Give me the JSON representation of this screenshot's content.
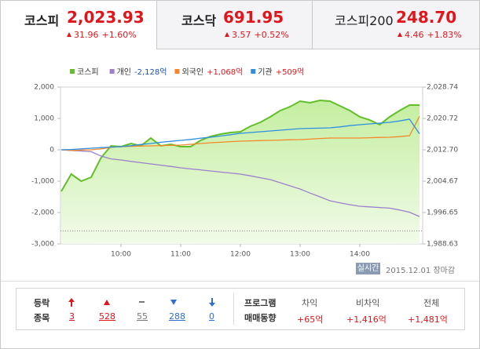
{
  "tabs": [
    {
      "name": "코스피",
      "price": "2,023.93",
      "change": "31.96",
      "rate": "+1.60%"
    },
    {
      "name": "코스닥",
      "price": "691.95",
      "change": "3.57",
      "rate": "+0.52%"
    },
    {
      "name": "코스피200",
      "price": "248.70",
      "change": "4.46",
      "rate": "+1.83%"
    }
  ],
  "chart_data": {
    "type": "line",
    "x": [
      "09:00",
      "09:10",
      "09:20",
      "09:30",
      "09:40",
      "09:50",
      "10:00",
      "10:10",
      "10:20",
      "10:30",
      "10:40",
      "10:50",
      "11:00",
      "11:10",
      "11:20",
      "11:30",
      "11:40",
      "11:50",
      "12:00",
      "12:10",
      "12:20",
      "12:30",
      "12:40",
      "12:50",
      "13:00",
      "13:10",
      "13:20",
      "13:30",
      "13:40",
      "13:50",
      "14:00",
      "14:10",
      "14:20",
      "14:30",
      "14:40",
      "14:50",
      "15:00"
    ],
    "xlim": [
      "09:00",
      "15:00"
    ],
    "xticks": [
      "10:00",
      "11:00",
      "12:00",
      "13:00",
      "14:00"
    ],
    "ylim": [
      -3000,
      2000
    ],
    "yticks": [
      {
        "value": 2000,
        "label": "2,000"
      },
      {
        "value": 1000,
        "label": "1,000"
      },
      0,
      {
        "value": -1000,
        "label": "-1,000"
      },
      {
        "value": -2000,
        "label": "-2,000"
      },
      {
        "value": -3000,
        "label": "-3,000"
      }
    ],
    "y2lim": [
      1988.63,
      2028.74
    ],
    "y2ticks": [
      {
        "value": 2028.74,
        "label": "2,028.74"
      },
      {
        "value": 2020.72,
        "label": "2,020.72"
      },
      {
        "value": 2012.7,
        "label": "2,012.70"
      },
      {
        "value": 2004.67,
        "label": "2,004.67"
      },
      {
        "value": 1996.65,
        "label": "1,996.65"
      },
      {
        "value": 1988.63,
        "label": "1,988.63"
      }
    ],
    "reference_line": 1991.97,
    "series": [
      {
        "name": "코스피",
        "color": "#62bf2a",
        "axis": "y2",
        "area": true,
        "values": [
          2002.06,
          2006.47,
          2004.67,
          2005.67,
          2010.69,
          2013.69,
          2013.49,
          2014.3,
          2013.69,
          2015.7,
          2013.69,
          2014.1,
          2013.49,
          2013.49,
          2015.1,
          2016.1,
          2016.7,
          2017.11,
          2017.31,
          2018.71,
          2019.71,
          2021.12,
          2022.72,
          2023.72,
          2025.13,
          2024.73,
          2025.33,
          2025.13,
          2023.93,
          2022.72,
          2021.12,
          2020.31,
          2019.11,
          2021.12,
          2022.72,
          2024.13,
          2024.13
        ]
      },
      {
        "name": "개인",
        "net": "-2,128억",
        "net_color": "#1d4fae",
        "color": "#9b80cc",
        "values": [
          0,
          -20,
          -40,
          -60,
          -200,
          -290,
          -325,
          -370,
          -410,
          -450,
          -490,
          -530,
          -575,
          -610,
          -640,
          -675,
          -710,
          -740,
          -775,
          -830,
          -890,
          -950,
          -1050,
          -1150,
          -1250,
          -1380,
          -1500,
          -1625,
          -1690,
          -1750,
          -1800,
          -1820,
          -1840,
          -1860,
          -1920,
          -1990,
          -2128
        ]
      },
      {
        "name": "외국인",
        "net": "+1,068억",
        "net_color": "#e0161c",
        "color": "#f5882a",
        "values": [
          0,
          -20,
          -10,
          0,
          30,
          80,
          100,
          110,
          120,
          125,
          135,
          140,
          150,
          175,
          200,
          225,
          240,
          260,
          275,
          285,
          295,
          300,
          310,
          320,
          325,
          340,
          360,
          375,
          375,
          375,
          375,
          385,
          395,
          400,
          420,
          450,
          1068
        ]
      },
      {
        "name": "기관",
        "net": "+509억",
        "net_color": "#e0161c",
        "color": "#2f8fe0",
        "values": [
          0,
          10,
          30,
          50,
          70,
          85,
          100,
          130,
          170,
          200,
          240,
          270,
          300,
          330,
          370,
          400,
          440,
          480,
          525,
          550,
          575,
          600,
          625,
          650,
          675,
          685,
          690,
          700,
          730,
          770,
          800,
          825,
          850,
          875,
          920,
          975,
          509
        ]
      }
    ]
  },
  "footer": {
    "badge": "실시간",
    "date": "2015.12.01",
    "status": "장마감"
  },
  "updown": {
    "label_top": "등락",
    "label_bottom": "종목",
    "values": [
      3,
      528,
      55,
      288,
      0
    ]
  },
  "program": {
    "label_top": "프로그램",
    "label_bottom": "매매동향",
    "items": [
      {
        "name": "차익",
        "value": "+65억"
      },
      {
        "name": "비차익",
        "value": "+1,416억"
      },
      {
        "name": "전체",
        "value": "+1,481억"
      }
    ]
  }
}
